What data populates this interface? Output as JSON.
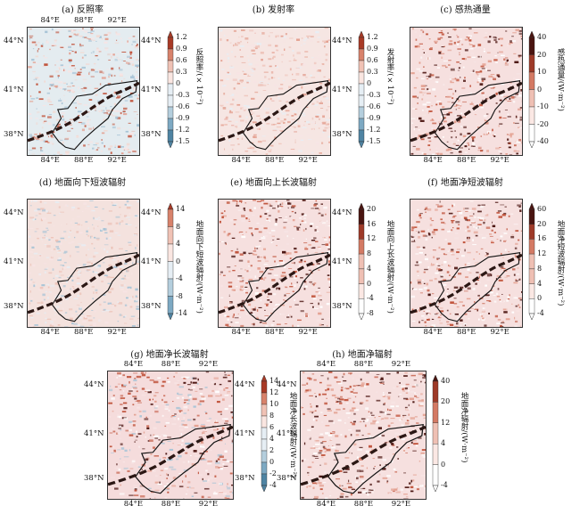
{
  "axes": {
    "lat_labels": [
      "44°N",
      "41°N",
      "38°N"
    ],
    "lon_labels": [
      "84°E",
      "88°E",
      "92°E"
    ]
  },
  "colors": {
    "pos_low": "#f7e4e4",
    "pos_mid": "#e39f8f",
    "pos_high": "#c0523a",
    "pos_extreme": "#4a1410",
    "neg_low": "#e7eef4",
    "neg_mid": "#a8c4d6",
    "neg_high": "#5b8fac",
    "outline": "#111111"
  },
  "panels": [
    {
      "id": "a",
      "title": "(a) 反照率",
      "unit": "反照率/(×10⁻²)",
      "colorbar": [
        "1.2",
        "0.9",
        "0.6",
        "0.3",
        "0",
        "-0.3",
        "-0.6",
        "-0.9",
        "-1.2",
        "-1.5"
      ],
      "style": "mixed_red_blue",
      "lon_labels_top": true,
      "lat_left": true,
      "lat_right": true
    },
    {
      "id": "b",
      "title": "(b) 发射率",
      "unit": "发射率/(×10⁻²)",
      "colorbar": [
        "1.2",
        "0.9",
        "0.6",
        "0.3",
        "0",
        "-0.3",
        "-0.6",
        "-0.9",
        "-1.2",
        "-1.5"
      ],
      "style": "light_red",
      "lon_labels_top": false,
      "lat_left": false,
      "lat_right": true
    },
    {
      "id": "c",
      "title": "(c) 感热通量",
      "unit": "感热通量/(W·m⁻²)",
      "colorbar": [
        "40",
        "20",
        "10",
        "0",
        "-10",
        "-20",
        "-40"
      ],
      "style": "pink_dark",
      "lon_labels_top": false,
      "lat_left": false,
      "lat_right": false
    },
    {
      "id": "d",
      "title": "(d) 地面向下短波辐射",
      "unit": "地面向下短波辐射/(W·m⁻²)",
      "colorbar": [
        "14",
        "8",
        "4",
        "0",
        "-4",
        "-8",
        "-14"
      ],
      "style": "light_mixed",
      "lon_labels_top": false,
      "lat_left": true,
      "lat_right": true
    },
    {
      "id": "e",
      "title": "(e) 地面向上长波辐射",
      "unit": "地面向上长波辐射/(W·m⁻²)",
      "colorbar": [
        "20",
        "16",
        "12",
        "8",
        "4",
        "0",
        "-4",
        "-8"
      ],
      "style": "pink_dark",
      "lon_labels_top": false,
      "lat_left": false,
      "lat_right": true
    },
    {
      "id": "f",
      "title": "(f) 地面净短波辐射",
      "unit": "地面净短波辐射/(W·m⁻²)",
      "colorbar": [
        "60",
        "20",
        "16",
        "12",
        "8",
        "4",
        "0",
        "-4"
      ],
      "style": "pink_dark",
      "lon_labels_top": false,
      "lat_left": false,
      "lat_right": false
    },
    {
      "id": "g",
      "title": "(g) 地面净长波辐射",
      "unit": "地面净长波辐射/(W·m⁻²)",
      "colorbar": [
        "14",
        "12",
        "10",
        "8",
        "6",
        "4",
        "2",
        "0",
        "-2",
        "-4"
      ],
      "style": "pink_dark_blue",
      "lon_labels_top": true,
      "lat_left": true,
      "lat_right": true
    },
    {
      "id": "h",
      "title": "(h) 地面净辐射",
      "unit": "地面净辐射/(W·m⁻²)",
      "colorbar": [
        "40",
        "20",
        "12",
        "4",
        "0",
        "-4"
      ],
      "style": "pink_dark",
      "lon_labels_top": true,
      "lat_left": true,
      "lat_right": false
    }
  ]
}
